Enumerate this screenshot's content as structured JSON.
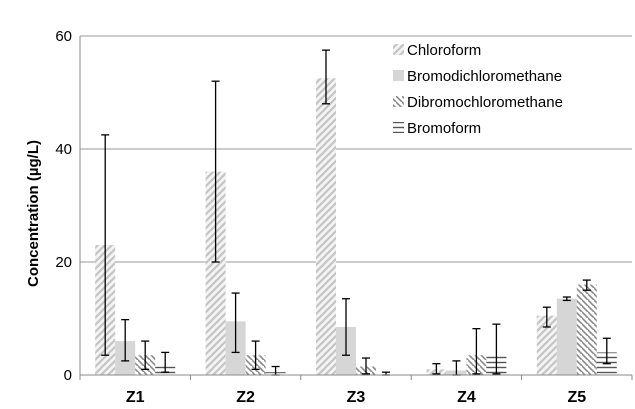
{
  "chart_data": {
    "type": "bar",
    "title": "",
    "xlabel": "",
    "ylabel": "Concentration (µg/L)",
    "ylim": [
      0,
      60
    ],
    "yticks": [
      0,
      20,
      40,
      60
    ],
    "grid": true,
    "legend_position": "top-right",
    "categories": [
      "Z1",
      "Z2",
      "Z3",
      "Z4",
      "Z5"
    ],
    "series": [
      {
        "name": "Chloroform",
        "pattern": "diagonal-up",
        "color": "#cfcfcf",
        "values": [
          23,
          36,
          52.5,
          1,
          10.5
        ],
        "error_low": [
          3.5,
          20,
          48,
          0.2,
          8.5
        ],
        "error_high": [
          42.5,
          52,
          57.5,
          2,
          12
        ]
      },
      {
        "name": "Bromodichloromethane",
        "pattern": "solid",
        "color": "#d6d6d6",
        "values": [
          6,
          9.5,
          8.5,
          0.8,
          13.5
        ],
        "error_low": [
          2.5,
          4,
          3.5,
          0,
          13.2
        ],
        "error_high": [
          9.8,
          14.5,
          13.5,
          2.5,
          13.8
        ]
      },
      {
        "name": "Dibromochloromethane",
        "pattern": "diagonal-down",
        "color": "#a0a0a0",
        "values": [
          3.5,
          3.5,
          1.5,
          3.5,
          16
        ],
        "error_low": [
          1,
          1,
          0.2,
          0.2,
          15
        ],
        "error_high": [
          6,
          6,
          3,
          8.2,
          16.8
        ]
      },
      {
        "name": "Bromoform",
        "pattern": "horizontal",
        "color": "#6a6a6a",
        "values": [
          1.5,
          0.5,
          0.2,
          3.5,
          4
        ],
        "error_low": [
          0.5,
          0,
          0,
          0.2,
          2
        ],
        "error_high": [
          4,
          1.5,
          0.5,
          9,
          6.5
        ]
      }
    ]
  }
}
